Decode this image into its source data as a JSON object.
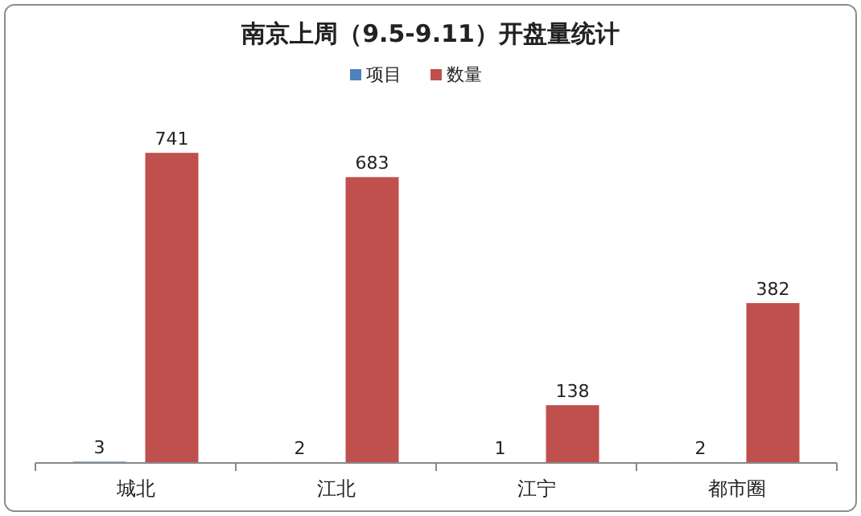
{
  "chart_data": {
    "type": "bar",
    "title": "南京上周（9.5-9.11）开盘量统计",
    "categories": [
      "城北",
      "江北",
      "江宁",
      "都市圈"
    ],
    "series": [
      {
        "name": "项目",
        "color": "#4f81bd",
        "values": [
          3,
          2,
          1,
          2
        ]
      },
      {
        "name": "数量",
        "color": "#c0504d",
        "values": [
          741,
          683,
          138,
          382
        ]
      }
    ],
    "data_labels": true,
    "legend": "top"
  }
}
